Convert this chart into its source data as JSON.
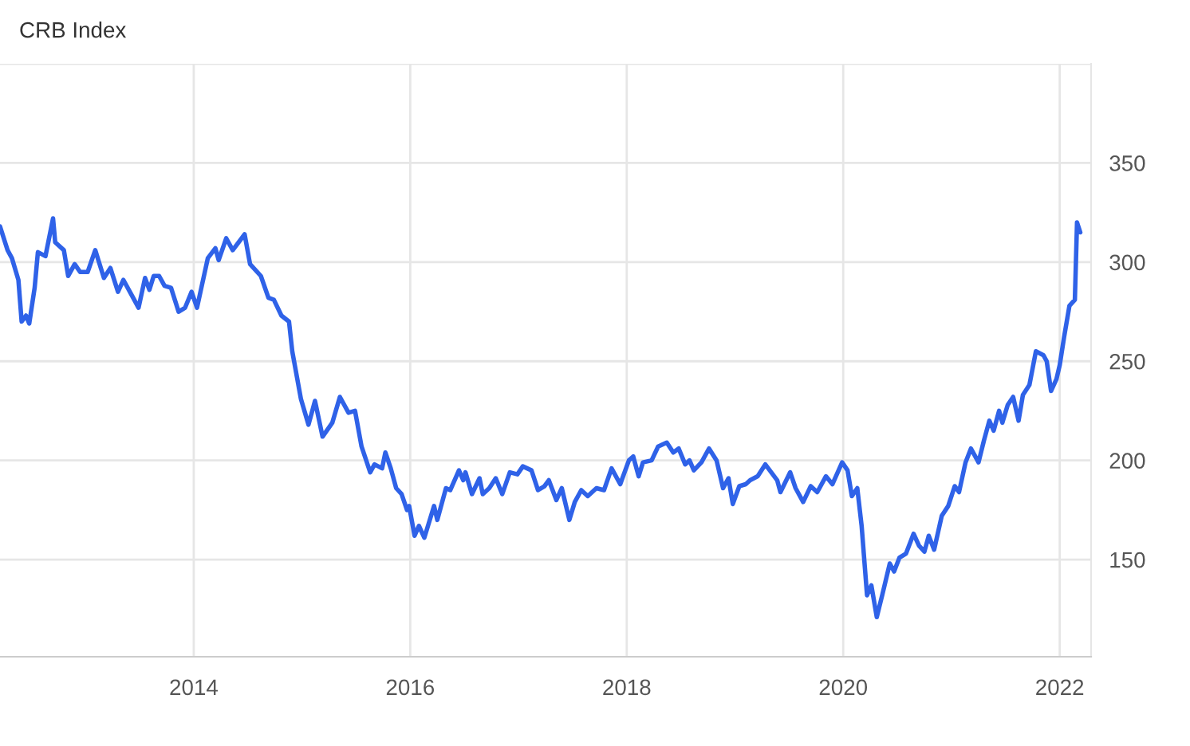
{
  "chart_data": {
    "type": "line",
    "title": "CRB Index",
    "x": [
      2012.21,
      2012.28,
      2012.32,
      2012.38,
      2012.41,
      2012.45,
      2012.48,
      2012.53,
      2012.56,
      2012.63,
      2012.7,
      2012.72,
      2012.8,
      2012.84,
      2012.9,
      2012.95,
      2013.02,
      2013.09,
      2013.17,
      2013.23,
      2013.3,
      2013.35,
      2013.43,
      2013.49,
      2013.55,
      2013.59,
      2013.63,
      2013.68,
      2013.73,
      2013.79,
      2013.86,
      2013.92,
      2013.98,
      2014.03,
      2014.13,
      2014.2,
      2014.23,
      2014.3,
      2014.36,
      2014.47,
      2014.52,
      2014.62,
      2014.69,
      2014.74,
      2014.81,
      2014.88,
      2014.91,
      2014.99,
      2015.06,
      2015.12,
      2015.19,
      2015.28,
      2015.35,
      2015.43,
      2015.49,
      2015.55,
      2015.63,
      2015.67,
      2015.74,
      2015.77,
      2015.82,
      2015.87,
      2015.92,
      2015.97,
      2015.99,
      2016.04,
      2016.08,
      2016.13,
      2016.22,
      2016.25,
      2016.33,
      2016.37,
      2016.45,
      2016.49,
      2016.51,
      2016.57,
      2016.64,
      2016.67,
      2016.73,
      2016.79,
      2016.85,
      2016.92,
      2016.99,
      2017.04,
      2017.12,
      2017.18,
      2017.24,
      2017.28,
      2017.35,
      2017.4,
      2017.47,
      2017.52,
      2017.58,
      2017.64,
      2017.72,
      2017.79,
      2017.86,
      2017.94,
      2018.02,
      2018.06,
      2018.11,
      2018.15,
      2018.23,
      2018.29,
      2018.37,
      2018.43,
      2018.48,
      2018.54,
      2018.58,
      2018.62,
      2018.69,
      2018.76,
      2018.83,
      2018.89,
      2018.94,
      2018.98,
      2019.04,
      2019.1,
      2019.14,
      2019.21,
      2019.28,
      2019.39,
      2019.42,
      2019.51,
      2019.56,
      2019.63,
      2019.7,
      2019.76,
      2019.84,
      2019.9,
      2019.99,
      2020.04,
      2020.08,
      2020.13,
      2020.17,
      2020.22,
      2020.26,
      2020.31,
      2020.36,
      2020.43,
      2020.47,
      2020.52,
      2020.58,
      2020.65,
      2020.7,
      2020.75,
      2020.79,
      2020.84,
      2020.91,
      2020.97,
      2021.03,
      2021.07,
      2021.13,
      2021.18,
      2021.25,
      2021.3,
      2021.35,
      2021.39,
      2021.44,
      2021.47,
      2021.52,
      2021.57,
      2021.62,
      2021.66,
      2021.72,
      2021.78,
      2021.85,
      2021.88,
      2021.92,
      2021.97,
      2022.0,
      2022.04,
      2022.09,
      2022.14,
      2022.16,
      2022.19
    ],
    "series": [
      {
        "color": "#2f62e8",
        "values": [
          318,
          306,
          302,
          291,
          270,
          273,
          269,
          287,
          305,
          303,
          322,
          310,
          306,
          293,
          299,
          295,
          295,
          306,
          292,
          297,
          285,
          291,
          283,
          277,
          292,
          286,
          293,
          293,
          288,
          287,
          275,
          277,
          285,
          277,
          302,
          307,
          301,
          312,
          306,
          314,
          299,
          293,
          282,
          281,
          273,
          270,
          255,
          231,
          218,
          230,
          212,
          219,
          232,
          224,
          225,
          207,
          194,
          198,
          196,
          204,
          196,
          186,
          183,
          175,
          177,
          162,
          167,
          161,
          177,
          170,
          186,
          185,
          195,
          190,
          194,
          183,
          191,
          183,
          186,
          191,
          183,
          194,
          193,
          197,
          195,
          185,
          187,
          190,
          180,
          186,
          170,
          179,
          185,
          182,
          186,
          185,
          196,
          188,
          200,
          202,
          192,
          199,
          200,
          207,
          209,
          204,
          206,
          198,
          200,
          195,
          199,
          206,
          200,
          186,
          191,
          178,
          187,
          188,
          190,
          192,
          198,
          190,
          184,
          194,
          186,
          179,
          187,
          184,
          192,
          188,
          199,
          195,
          182,
          186,
          167,
          132,
          137,
          121,
          132,
          148,
          144,
          151,
          153,
          163,
          157,
          154,
          162,
          155,
          172,
          177,
          187,
          184,
          199,
          206,
          199,
          210,
          220,
          215,
          225,
          219,
          228,
          232,
          220,
          233,
          238,
          255,
          253,
          250,
          235,
          241,
          248,
          262,
          278,
          281,
          320,
          315
        ]
      }
    ],
    "xlim": [
      2012.21,
      2022.29
    ],
    "xticks": [
      2014,
      2016,
      2018,
      2020,
      2022
    ],
    "ylim": [
      101,
      400
    ],
    "yticks": [
      150,
      200,
      250,
      300,
      350,
      {
        "value": 400,
        "label": null
      }
    ],
    "grid": true,
    "marker": "none",
    "line_style": "solid"
  }
}
